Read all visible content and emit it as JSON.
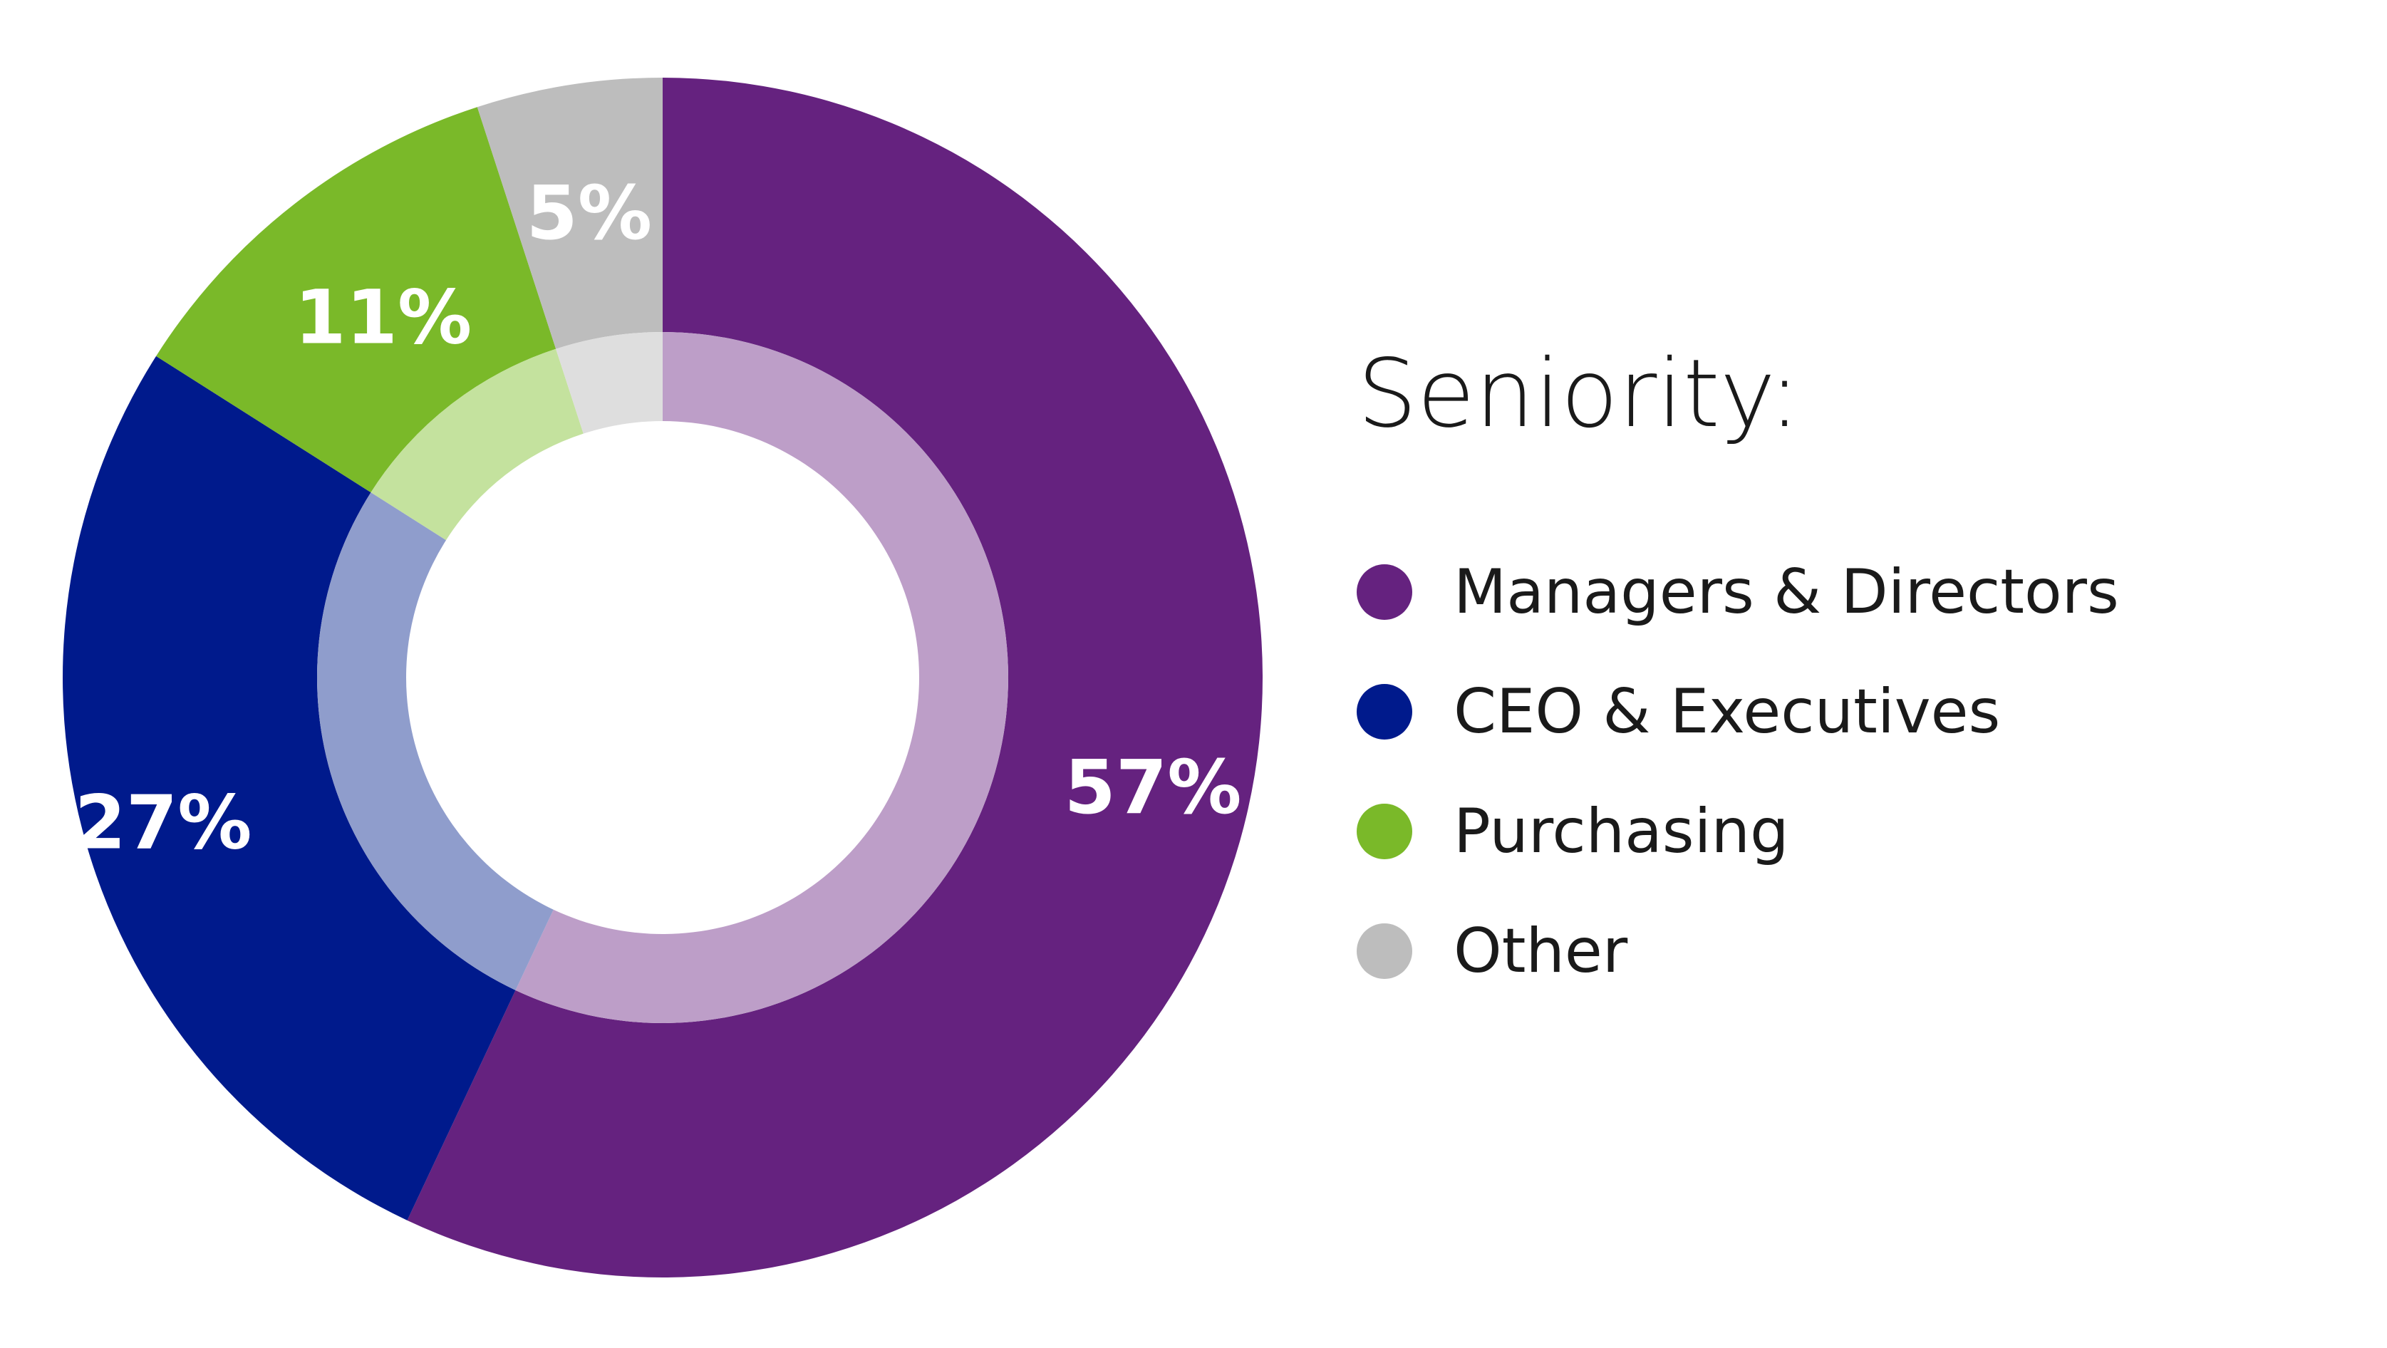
{
  "chart_data": {
    "type": "pie",
    "variant": "donut",
    "legend_title": "Seniority:",
    "legend_position": "right",
    "categories": [
      "Managers & Directors",
      "CEO & Executives",
      "Purchasing",
      "Other"
    ],
    "values": [
      57,
      27,
      11,
      5
    ],
    "labels": [
      "57%",
      "27%",
      "11%",
      "5%"
    ],
    "colors": [
      "#65227f",
      "#001a8c",
      "#7ab929",
      "#bdbdbd"
    ],
    "inner_colors": [
      "#bd9ec8",
      "#8f9dcc",
      "#c4e29e",
      "#dedede"
    ],
    "unit": "%"
  }
}
